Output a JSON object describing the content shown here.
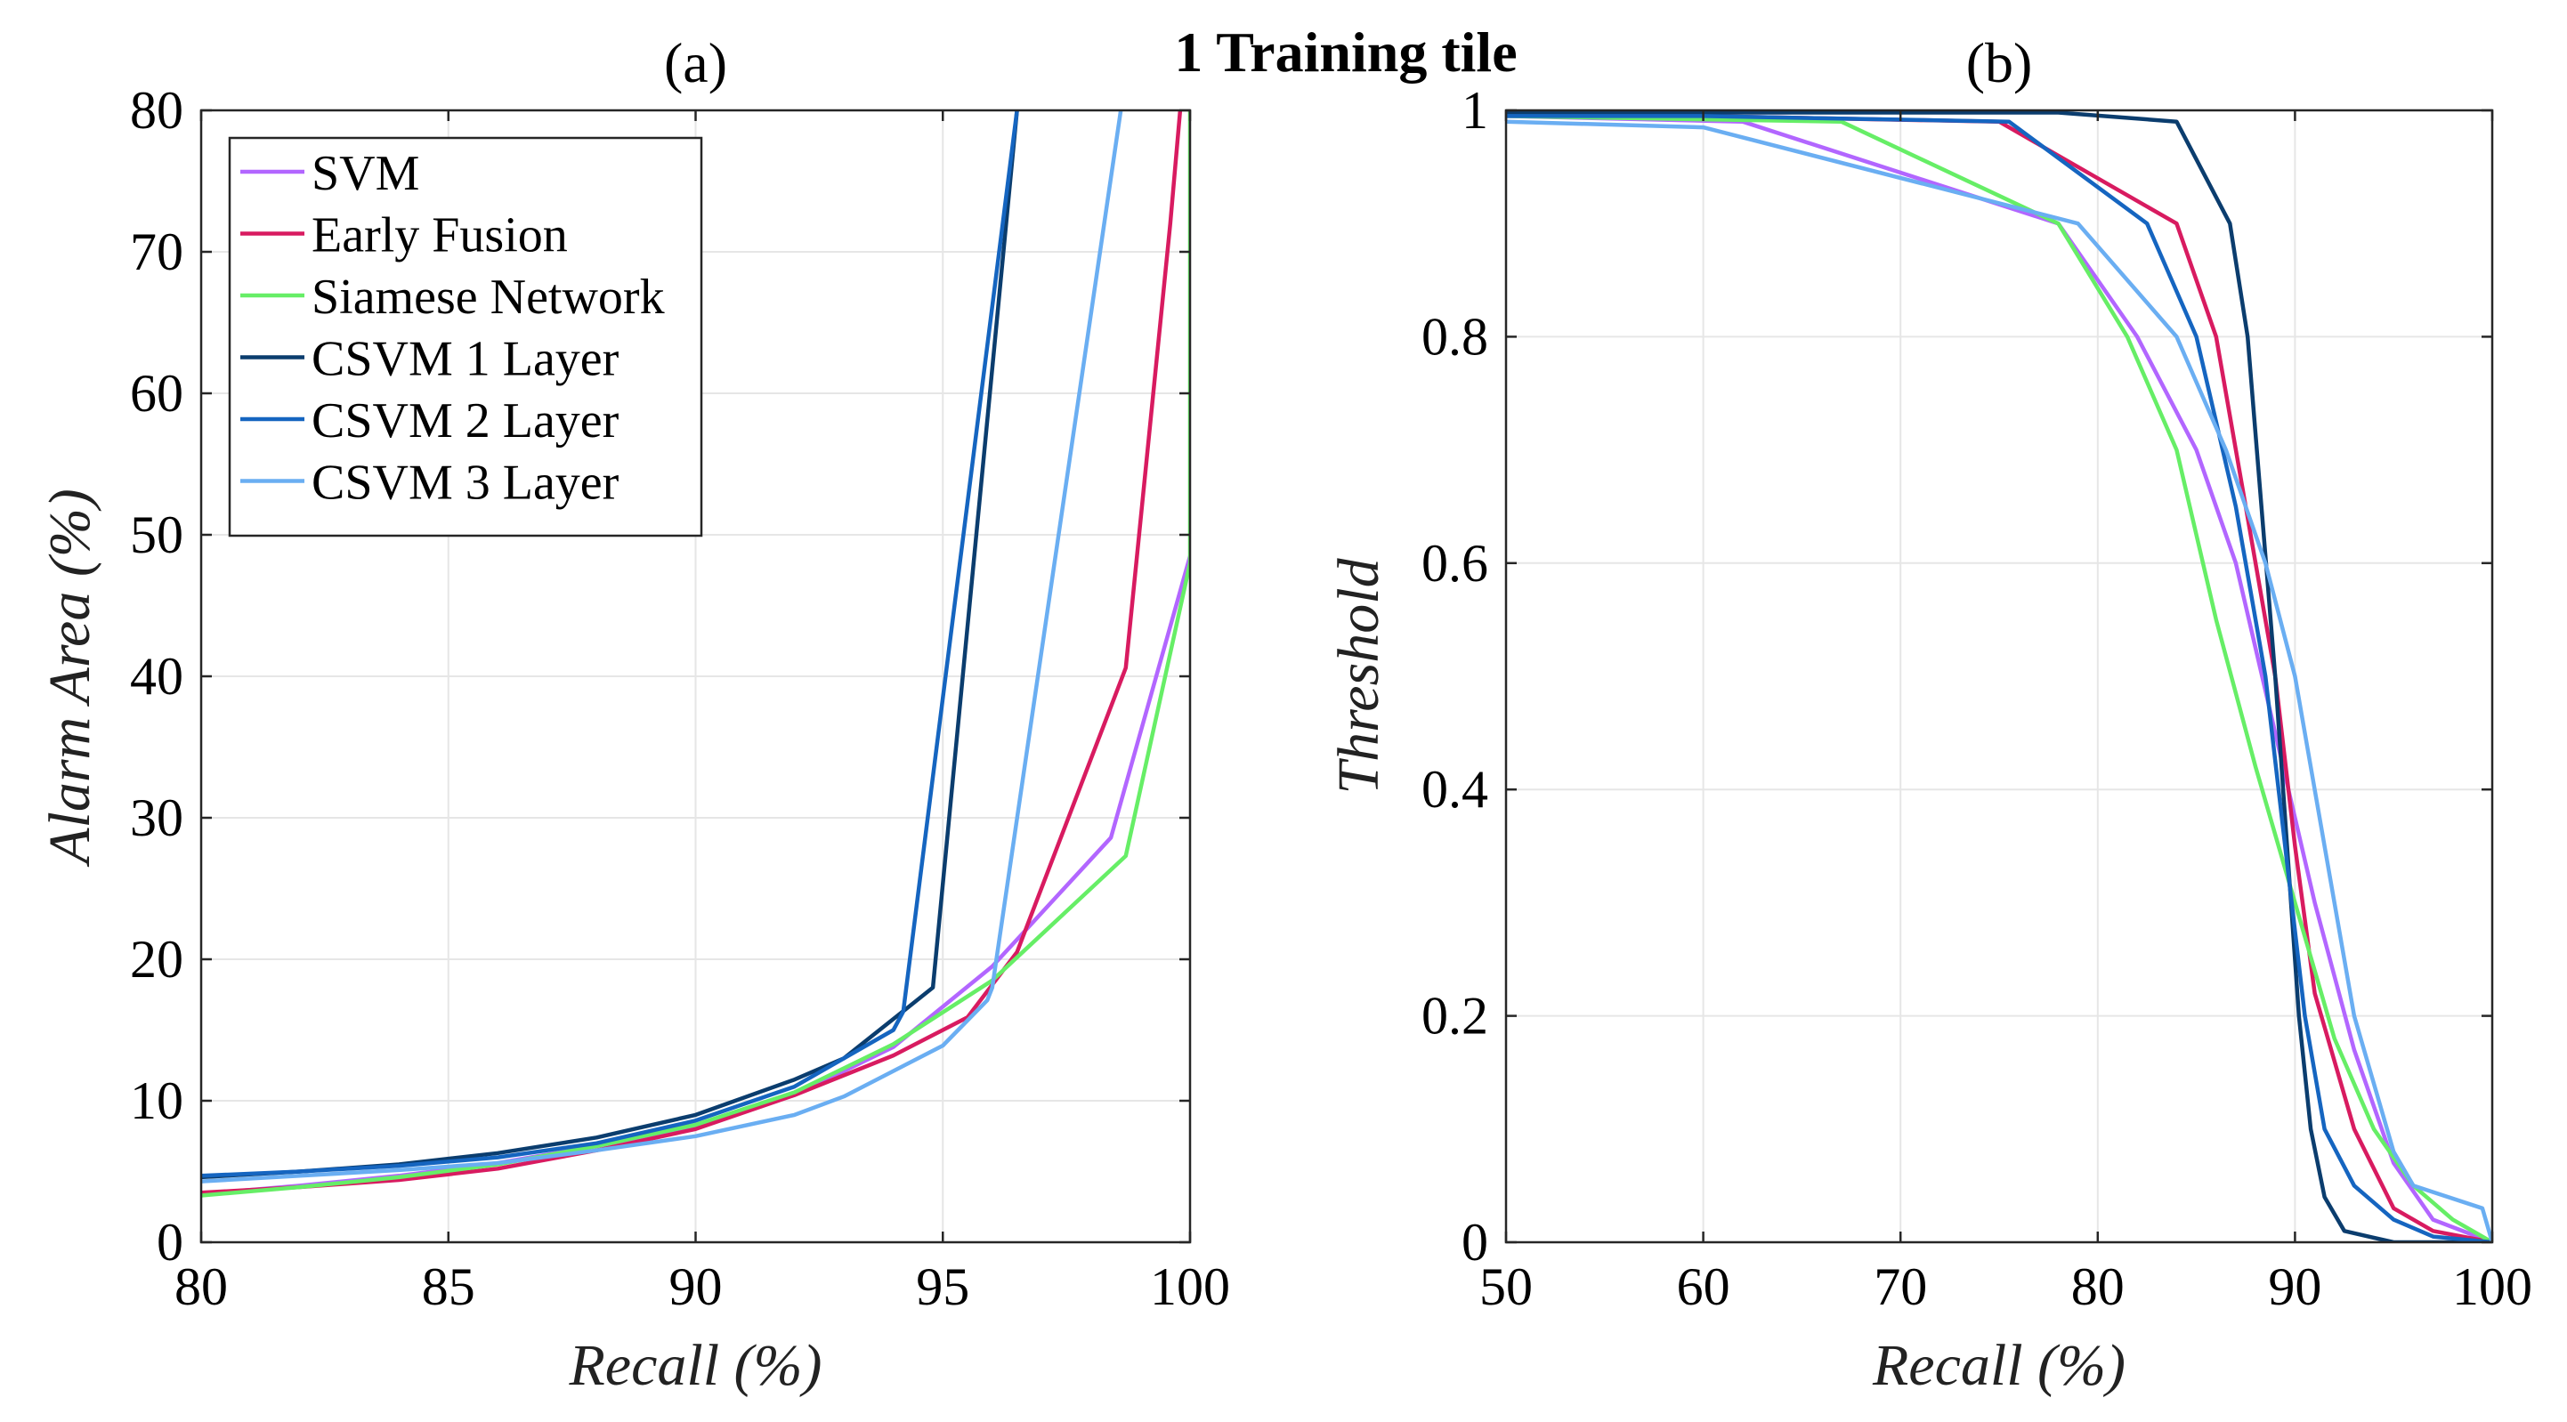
{
  "suptitle": "1 Training tile",
  "colors": {
    "SVM": "#b266ff",
    "Early Fusion": "#d81b60",
    "Siamese Network": "#66ee66",
    "CSVM 1 Layer": "#0b3d6e",
    "CSVM 2 Layer": "#1565c0",
    "CSVM 3 Layer": "#6aaef2",
    "grid": "#e6e6e6",
    "axis": "#262626"
  },
  "chart_data": [
    {
      "type": "line",
      "panel_label": "(a)",
      "xlabel": "Recall (%)",
      "ylabel": "Alarm Area (%)",
      "xlim": [
        80,
        100
      ],
      "ylim": [
        0,
        80
      ],
      "xticks": [
        80,
        85,
        90,
        95,
        100
      ],
      "yticks": [
        0,
        10,
        20,
        30,
        40,
        50,
        60,
        70,
        80
      ],
      "grid": true,
      "legend": "top-left",
      "series": [
        {
          "name": "SVM",
          "x": [
            80,
            82,
            84,
            86,
            88,
            90,
            92,
            94,
            96,
            98.4,
            100
          ],
          "y": [
            3.4,
            4.0,
            4.7,
            5.6,
            6.8,
            8.2,
            10.4,
            13.8,
            19.5,
            28.6,
            48.5
          ]
        },
        {
          "name": "Early Fusion",
          "x": [
            80,
            82,
            84,
            86,
            88,
            90,
            92,
            94,
            95.5,
            96.5,
            98.7,
            99.6,
            99.8
          ],
          "y": [
            3.5,
            3.9,
            4.4,
            5.2,
            6.5,
            8.0,
            10.4,
            13.2,
            15.9,
            20.5,
            40.6,
            72.0,
            80.0
          ]
        },
        {
          "name": "Siamese Network",
          "x": [
            80,
            82,
            84,
            86,
            88,
            90,
            92,
            94,
            96,
            98.7,
            100,
            100
          ],
          "y": [
            3.3,
            3.9,
            4.6,
            5.5,
            6.8,
            8.3,
            10.6,
            14.0,
            18.5,
            27.3,
            48.0,
            80.0
          ]
        },
        {
          "name": "CSVM 1 Layer",
          "x": [
            80,
            82,
            84,
            86,
            88,
            90,
            92,
            93,
            94.8,
            96.5
          ],
          "y": [
            4.6,
            5.0,
            5.5,
            6.3,
            7.4,
            9.0,
            11.5,
            13.0,
            18.0,
            80.0
          ]
        },
        {
          "name": "CSVM 2 Layer",
          "x": [
            80,
            82,
            84,
            86,
            88,
            90,
            92,
            94,
            94.2,
            96.5
          ],
          "y": [
            4.7,
            5.0,
            5.4,
            6.0,
            7.0,
            8.6,
            11.0,
            15.0,
            16.3,
            80.0
          ]
        },
        {
          "name": "CSVM 3 Layer",
          "x": [
            80,
            82,
            84,
            86,
            88,
            90,
            92,
            93,
            95,
            95.9,
            96,
            98.6
          ],
          "y": [
            4.3,
            4.7,
            5.1,
            5.6,
            6.5,
            7.5,
            9.0,
            10.3,
            13.9,
            17.1,
            18.0,
            80.0
          ]
        }
      ]
    },
    {
      "type": "line",
      "panel_label": "(b)",
      "xlabel": "Recall (%)",
      "ylabel": "Threshold",
      "xlim": [
        50,
        100
      ],
      "ylim": [
        0,
        1
      ],
      "xticks": [
        50,
        60,
        70,
        80,
        90,
        100
      ],
      "yticks": [
        0,
        0.2,
        0.4,
        0.6,
        0.8,
        1
      ],
      "ytick_labels": [
        "0",
        "0.2",
        "0.4",
        "0.6",
        "0.8",
        "1"
      ],
      "grid": true,
      "series": [
        {
          "name": "SVM",
          "x": [
            50,
            62,
            78,
            82,
            85,
            87,
            89,
            91,
            93,
            95,
            97,
            100
          ],
          "y": [
            0.995,
            0.99,
            0.9,
            0.8,
            0.7,
            0.6,
            0.45,
            0.3,
            0.17,
            0.07,
            0.02,
            0.0
          ]
        },
        {
          "name": "Early Fusion",
          "x": [
            50,
            60,
            75,
            84,
            86,
            88,
            89,
            90,
            91,
            93,
            95,
            97,
            100
          ],
          "y": [
            0.998,
            0.995,
            0.99,
            0.9,
            0.8,
            0.6,
            0.5,
            0.35,
            0.22,
            0.1,
            0.03,
            0.01,
            0.0
          ]
        },
        {
          "name": "Siamese Network",
          "x": [
            50,
            67,
            78,
            81.5,
            84,
            86,
            88,
            90,
            92,
            94,
            96,
            98,
            100
          ],
          "y": [
            0.995,
            0.99,
            0.9,
            0.8,
            0.7,
            0.55,
            0.42,
            0.3,
            0.18,
            0.1,
            0.05,
            0.02,
            0.0
          ]
        },
        {
          "name": "CSVM 1 Layer",
          "x": [
            50,
            60,
            78,
            84,
            86.7,
            87.6,
            88.3,
            89,
            89.6,
            90.2,
            90.8,
            91.5,
            92.5,
            95,
            100
          ],
          "y": [
            0.998,
            0.998,
            0.998,
            0.99,
            0.9,
            0.8,
            0.65,
            0.5,
            0.35,
            0.2,
            0.1,
            0.04,
            0.01,
            0.0,
            0.0
          ]
        },
        {
          "name": "CSVM 2 Layer",
          "x": [
            50,
            60,
            75.5,
            82.5,
            85,
            87,
            88.5,
            89.5,
            90.5,
            91.5,
            93,
            95,
            97,
            100
          ],
          "y": [
            0.995,
            0.995,
            0.99,
            0.9,
            0.8,
            0.65,
            0.5,
            0.35,
            0.2,
            0.1,
            0.05,
            0.02,
            0.005,
            0.0
          ]
        },
        {
          "name": "CSVM 3 Layer",
          "x": [
            50,
            60,
            79,
            84,
            86.5,
            88.5,
            90,
            91.5,
            93,
            95,
            96,
            99.5,
            100
          ],
          "y": [
            0.99,
            0.985,
            0.9,
            0.8,
            0.7,
            0.6,
            0.5,
            0.35,
            0.2,
            0.08,
            0.05,
            0.03,
            0.0
          ]
        }
      ]
    }
  ]
}
